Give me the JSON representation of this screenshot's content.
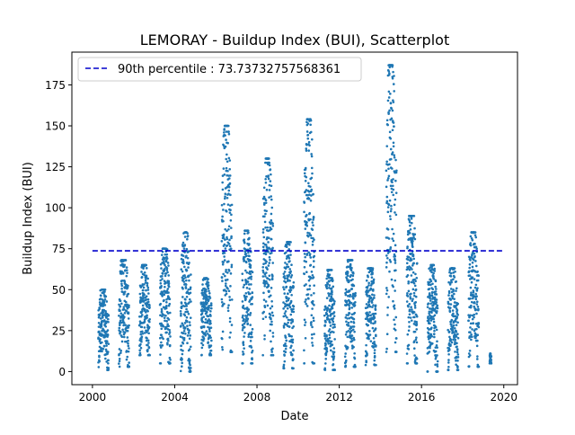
{
  "chart_data": {
    "type": "scatter",
    "title": "LEMORAY - Buildup Index (BUI), Scatterplot",
    "xlabel": "Date",
    "ylabel": "Buildup Index (BUI)",
    "xlim": [
      "1999-01-01",
      "2020-09-01"
    ],
    "ylim": [
      -8,
      195
    ],
    "x_ticks": [
      "2000",
      "2004",
      "2008",
      "2012",
      "2016",
      "2020"
    ],
    "y_ticks": [
      "0",
      "25",
      "50",
      "75",
      "100",
      "125",
      "150",
      "175"
    ],
    "legend_position": "top-left",
    "reference_line": {
      "label": "90th percentile : 73.73732757568361",
      "value": 73.73732757568361,
      "x_start": "2000-01-01",
      "x_end": "2019-12-31",
      "color": "#0000cc",
      "style": "dashed"
    },
    "series": [
      {
        "color": "#1f77b4",
        "seasons": [
          {
            "year": 2000,
            "start": "2000-04-15",
            "end": "2000-10-15",
            "min": 1,
            "max": 50
          },
          {
            "year": 2001,
            "start": "2001-04-15",
            "end": "2001-10-15",
            "min": 3,
            "max": 68
          },
          {
            "year": 2002,
            "start": "2002-04-15",
            "end": "2002-10-15",
            "min": 10,
            "max": 65
          },
          {
            "year": 2003,
            "start": "2003-04-15",
            "end": "2003-10-15",
            "min": 5,
            "max": 75
          },
          {
            "year": 2004,
            "start": "2004-04-15",
            "end": "2004-10-15",
            "min": 0,
            "max": 85
          },
          {
            "year": 2005,
            "start": "2005-04-15",
            "end": "2005-10-15",
            "min": 10,
            "max": 57
          },
          {
            "year": 2006,
            "start": "2006-04-15",
            "end": "2006-10-15",
            "min": 12,
            "max": 150
          },
          {
            "year": 2007,
            "start": "2007-04-15",
            "end": "2007-10-15",
            "min": 5,
            "max": 86
          },
          {
            "year": 2008,
            "start": "2008-04-15",
            "end": "2008-10-15",
            "min": 10,
            "max": 130
          },
          {
            "year": 2009,
            "start": "2009-04-15",
            "end": "2009-10-15",
            "min": 2,
            "max": 79
          },
          {
            "year": 2010,
            "start": "2010-04-15",
            "end": "2010-10-15",
            "min": 5,
            "max": 154
          },
          {
            "year": 2011,
            "start": "2011-04-15",
            "end": "2011-10-15",
            "min": 1,
            "max": 62
          },
          {
            "year": 2012,
            "start": "2012-04-15",
            "end": "2012-10-15",
            "min": 3,
            "max": 68
          },
          {
            "year": 2013,
            "start": "2013-04-15",
            "end": "2013-10-15",
            "min": 4,
            "max": 63
          },
          {
            "year": 2014,
            "start": "2014-04-15",
            "end": "2014-10-15",
            "min": 12,
            "max": 187
          },
          {
            "year": 2015,
            "start": "2015-04-15",
            "end": "2015-10-15",
            "min": 5,
            "max": 95
          },
          {
            "year": 2016,
            "start": "2016-04-15",
            "end": "2016-10-15",
            "min": 0,
            "max": 65
          },
          {
            "year": 2017,
            "start": "2017-04-15",
            "end": "2017-10-15",
            "min": 1,
            "max": 63
          },
          {
            "year": 2018,
            "start": "2018-04-15",
            "end": "2018-10-15",
            "min": 3,
            "max": 85
          },
          {
            "year": 2019,
            "start": "2019-04-25",
            "end": "2019-05-25",
            "min": 5,
            "max": 11
          }
        ]
      }
    ]
  }
}
